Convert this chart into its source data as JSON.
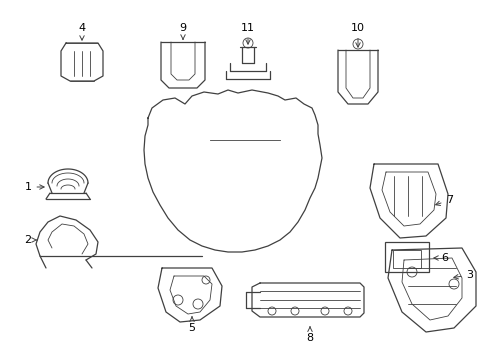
{
  "background_color": "#ffffff",
  "line_color": "#404040",
  "label_color": "#000000",
  "fig_width": 4.89,
  "fig_height": 3.6,
  "dpi": 100
}
